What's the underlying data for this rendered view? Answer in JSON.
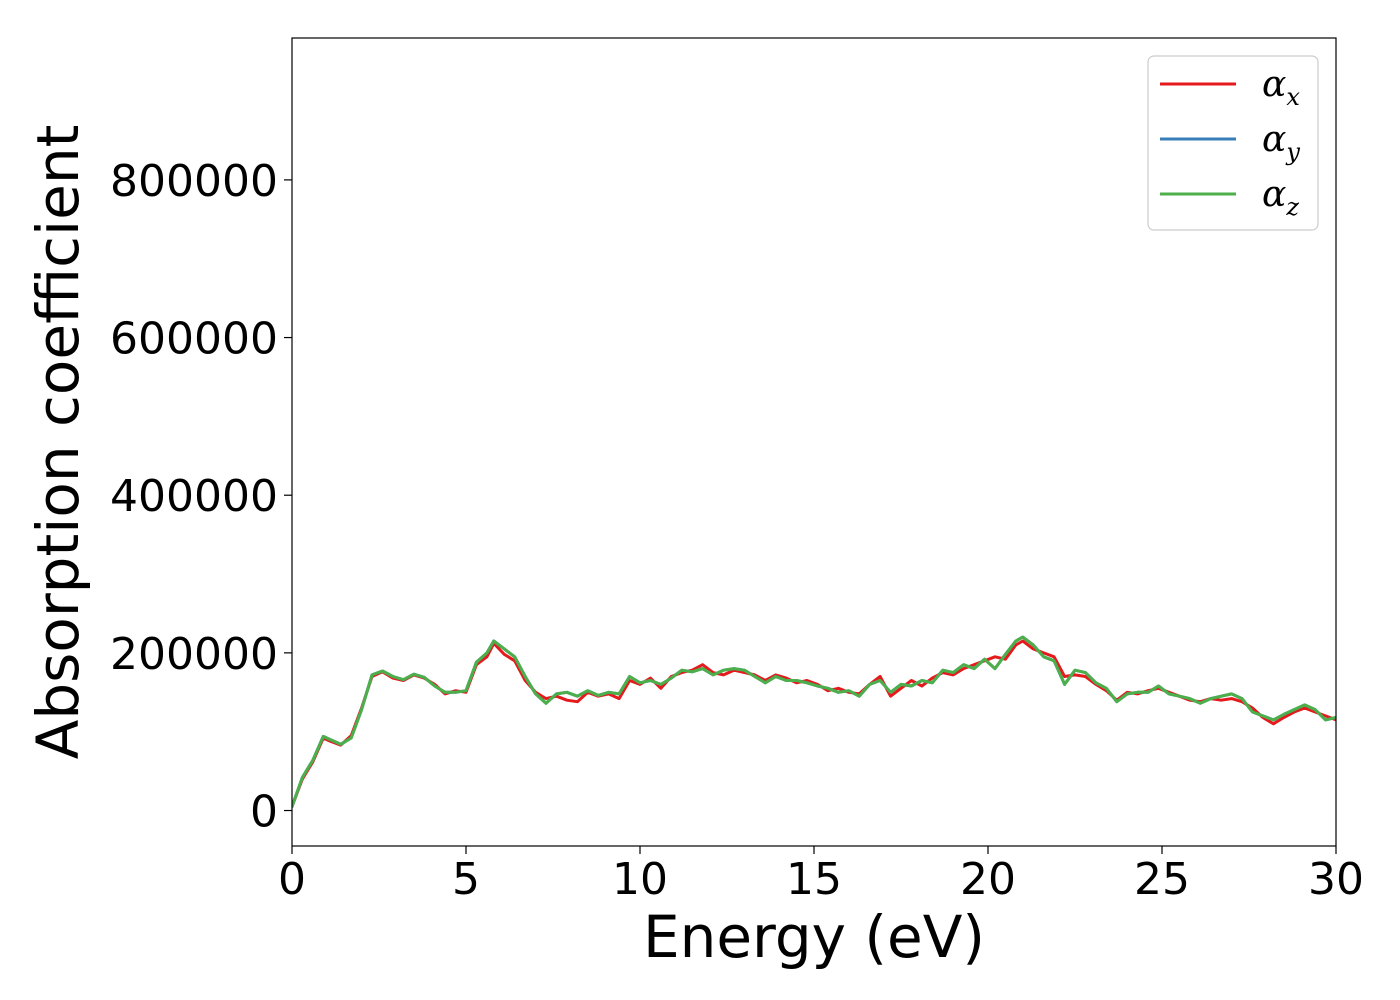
{
  "chart_data": {
    "type": "line",
    "title": "",
    "xlabel": "Energy (eV)",
    "ylabel": "Absorption coefficient",
    "xlim": [
      0,
      30
    ],
    "ylim": [
      -45000,
      980000
    ],
    "xticks": [
      0,
      5,
      10,
      15,
      20,
      25,
      30
    ],
    "yticks": [
      0,
      200000,
      400000,
      600000,
      800000
    ],
    "grid": false,
    "legend_position": "top-right",
    "series": [
      {
        "name": "α",
        "subscript": "x",
        "color": "#e41a1c",
        "x": [
          0,
          0.3,
          0.6,
          0.9,
          1.1,
          1.4,
          1.7,
          2.0,
          2.3,
          2.6,
          2.9,
          3.2,
          3.5,
          3.8,
          4.1,
          4.4,
          4.7,
          5.0,
          5.3,
          5.6,
          5.8,
          6.1,
          6.4,
          6.7,
          7.0,
          7.3,
          7.6,
          7.9,
          8.2,
          8.5,
          8.8,
          9.1,
          9.4,
          9.7,
          10.0,
          10.3,
          10.6,
          10.9,
          11.2,
          11.5,
          11.8,
          12.1,
          12.4,
          12.7,
          13.0,
          13.3,
          13.6,
          13.9,
          14.2,
          14.5,
          14.8,
          15.1,
          15.4,
          15.7,
          16.0,
          16.3,
          16.6,
          16.9,
          17.2,
          17.5,
          17.8,
          18.1,
          18.4,
          18.7,
          19.0,
          19.3,
          19.6,
          19.9,
          20.2,
          20.5,
          20.8,
          21.0,
          21.3,
          21.6,
          21.9,
          22.2,
          22.5,
          22.8,
          23.1,
          23.4,
          23.7,
          24.0,
          24.3,
          24.6,
          24.9,
          25.2,
          25.5,
          25.8,
          26.1,
          26.4,
          26.7,
          27.0,
          27.3,
          27.6,
          27.9,
          28.2,
          28.5,
          28.8,
          29.1,
          29.4,
          29.7,
          30.0
        ],
        "y": [
          5000,
          40000,
          62000,
          92000,
          88000,
          83000,
          95000,
          130000,
          170000,
          176000,
          168000,
          165000,
          172000,
          168000,
          160000,
          148000,
          152000,
          150000,
          185000,
          195000,
          212000,
          198000,
          190000,
          165000,
          150000,
          142000,
          145000,
          140000,
          138000,
          150000,
          145000,
          148000,
          142000,
          165000,
          160000,
          168000,
          155000,
          170000,
          175000,
          178000,
          185000,
          175000,
          172000,
          178000,
          175000,
          172000,
          165000,
          172000,
          168000,
          162000,
          165000,
          160000,
          152000,
          155000,
          150000,
          148000,
          160000,
          170000,
          145000,
          155000,
          165000,
          158000,
          168000,
          175000,
          172000,
          180000,
          185000,
          190000,
          195000,
          192000,
          210000,
          215000,
          205000,
          200000,
          195000,
          170000,
          172000,
          170000,
          160000,
          152000,
          140000,
          150000,
          148000,
          152000,
          155000,
          150000,
          145000,
          140000,
          138000,
          142000,
          140000,
          142000,
          138000,
          130000,
          118000,
          110000,
          118000,
          125000,
          130000,
          125000,
          120000,
          115000
        ]
      },
      {
        "name": "α",
        "subscript": "y",
        "color": "#377eb8",
        "x": [
          0,
          0.3,
          0.6,
          0.9,
          1.1,
          1.4,
          1.7,
          2.0,
          2.3,
          2.6,
          2.9,
          3.2,
          3.5,
          3.8,
          4.1,
          4.4,
          4.7,
          5.0,
          5.3,
          5.6,
          5.8,
          6.1,
          6.4,
          6.7,
          7.0,
          7.3,
          7.6,
          7.9,
          8.2,
          8.5,
          8.8,
          9.1,
          9.4,
          9.7,
          10.0,
          10.3,
          10.6,
          10.9,
          11.2,
          11.5,
          11.8,
          12.1,
          12.4,
          12.7,
          13.0,
          13.3,
          13.6,
          13.9,
          14.2,
          14.5,
          14.8,
          15.1,
          15.4,
          15.7,
          16.0,
          16.3,
          16.6,
          16.9,
          17.2,
          17.5,
          17.8,
          18.1,
          18.4,
          18.7,
          19.0,
          19.3,
          19.6,
          19.9,
          20.2,
          20.5,
          20.8,
          21.0,
          21.3,
          21.6,
          21.9,
          22.2,
          22.5,
          22.8,
          23.1,
          23.4,
          23.7,
          24.0,
          24.3,
          24.6,
          24.9,
          25.2,
          25.5,
          25.8,
          26.1,
          26.4,
          26.7,
          27.0,
          27.3,
          27.6,
          27.9,
          28.2,
          28.5,
          28.8,
          29.1,
          29.4,
          29.7,
          30.0
        ],
        "y": [
          5000,
          42000,
          64000,
          94000,
          90000,
          84000,
          92000,
          128000,
          172000,
          177000,
          170000,
          166000,
          173000,
          169000,
          158000,
          150000,
          150000,
          152000,
          188000,
          200000,
          215000,
          205000,
          195000,
          170000,
          148000,
          136000,
          148000,
          150000,
          145000,
          152000,
          146000,
          150000,
          148000,
          170000,
          162000,
          165000,
          160000,
          168000,
          178000,
          176000,
          180000,
          172000,
          178000,
          180000,
          178000,
          170000,
          162000,
          170000,
          165000,
          165000,
          162000,
          158000,
          155000,
          150000,
          152000,
          145000,
          160000,
          165000,
          150000,
          160000,
          158000,
          165000,
          162000,
          178000,
          175000,
          185000,
          180000,
          192000,
          180000,
          198000,
          215000,
          220000,
          210000,
          195000,
          190000,
          160000,
          178000,
          175000,
          162000,
          155000,
          138000,
          148000,
          150000,
          150000,
          158000,
          148000,
          145000,
          142000,
          136000,
          142000,
          145000,
          148000,
          142000,
          125000,
          120000,
          115000,
          122000,
          128000,
          134000,
          128000,
          115000,
          118000
        ]
      },
      {
        "name": "α",
        "subscript": "z",
        "color": "#4daf4a",
        "x": [
          0,
          0.3,
          0.6,
          0.9,
          1.1,
          1.4,
          1.7,
          2.0,
          2.3,
          2.6,
          2.9,
          3.2,
          3.5,
          3.8,
          4.1,
          4.4,
          4.7,
          5.0,
          5.3,
          5.6,
          5.8,
          6.1,
          6.4,
          6.7,
          7.0,
          7.3,
          7.6,
          7.9,
          8.2,
          8.5,
          8.8,
          9.1,
          9.4,
          9.7,
          10.0,
          10.3,
          10.6,
          10.9,
          11.2,
          11.5,
          11.8,
          12.1,
          12.4,
          12.7,
          13.0,
          13.3,
          13.6,
          13.9,
          14.2,
          14.5,
          14.8,
          15.1,
          15.4,
          15.7,
          16.0,
          16.3,
          16.6,
          16.9,
          17.2,
          17.5,
          17.8,
          18.1,
          18.4,
          18.7,
          19.0,
          19.3,
          19.6,
          19.9,
          20.2,
          20.5,
          20.8,
          21.0,
          21.3,
          21.6,
          21.9,
          22.2,
          22.5,
          22.8,
          23.1,
          23.4,
          23.7,
          24.0,
          24.3,
          24.6,
          24.9,
          25.2,
          25.5,
          25.8,
          26.1,
          26.4,
          26.7,
          27.0,
          27.3,
          27.6,
          27.9,
          28.2,
          28.5,
          28.8,
          29.1,
          29.4,
          29.7,
          30.0
        ],
        "y": [
          5000,
          42000,
          64000,
          94000,
          90000,
          84000,
          92000,
          128000,
          172000,
          177000,
          170000,
          166000,
          173000,
          169000,
          158000,
          150000,
          150000,
          152000,
          188000,
          200000,
          215000,
          205000,
          195000,
          170000,
          148000,
          136000,
          148000,
          150000,
          145000,
          152000,
          146000,
          150000,
          148000,
          170000,
          162000,
          165000,
          160000,
          168000,
          178000,
          176000,
          180000,
          172000,
          178000,
          180000,
          178000,
          170000,
          162000,
          170000,
          165000,
          165000,
          162000,
          158000,
          155000,
          150000,
          152000,
          145000,
          160000,
          165000,
          150000,
          160000,
          158000,
          165000,
          162000,
          178000,
          175000,
          185000,
          180000,
          192000,
          180000,
          198000,
          215000,
          220000,
          210000,
          195000,
          190000,
          160000,
          178000,
          175000,
          162000,
          155000,
          138000,
          148000,
          150000,
          150000,
          158000,
          148000,
          145000,
          142000,
          136000,
          142000,
          145000,
          148000,
          142000,
          125000,
          120000,
          115000,
          122000,
          128000,
          134000,
          128000,
          115000,
          118000
        ]
      }
    ]
  }
}
